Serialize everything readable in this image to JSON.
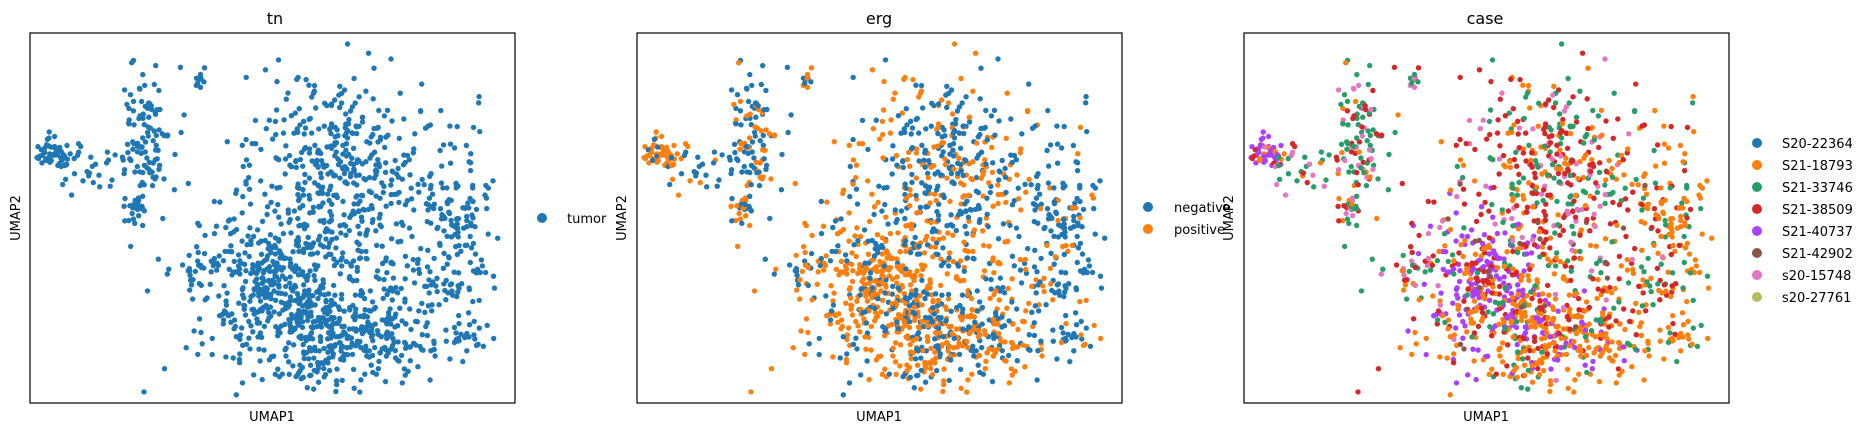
{
  "chart_data": [
    {
      "type": "scatter",
      "title": "tn",
      "xlabel": "UMAP1",
      "ylabel": "UMAP2",
      "grid": false,
      "legend_placement": "right",
      "series": [
        {
          "name": "tumor",
          "color": "#1f77b4"
        }
      ]
    },
    {
      "type": "scatter",
      "title": "erg",
      "xlabel": "UMAP1",
      "ylabel": "UMAP2",
      "grid": false,
      "legend_placement": "right",
      "series": [
        {
          "name": "negative",
          "color": "#1f77b4"
        },
        {
          "name": "positive",
          "color": "#ff7f0e"
        }
      ]
    },
    {
      "type": "scatter",
      "title": "case",
      "xlabel": "UMAP1",
      "ylabel": "UMAP2",
      "grid": false,
      "legend_placement": "right",
      "series": [
        {
          "name": "S20-22364",
          "color": "#1f77b4"
        },
        {
          "name": "S21-18793",
          "color": "#ff7f0e"
        },
        {
          "name": "S21-33746",
          "color": "#279e68"
        },
        {
          "name": "S21-38509",
          "color": "#d62728"
        },
        {
          "name": "S21-40737",
          "color": "#aa40fc"
        },
        {
          "name": "S21-42902",
          "color": "#8c564b"
        },
        {
          "name": "s20-15748",
          "color": "#e377c2"
        },
        {
          "name": "s20-27761",
          "color": "#b5bd61"
        }
      ]
    }
  ]
}
